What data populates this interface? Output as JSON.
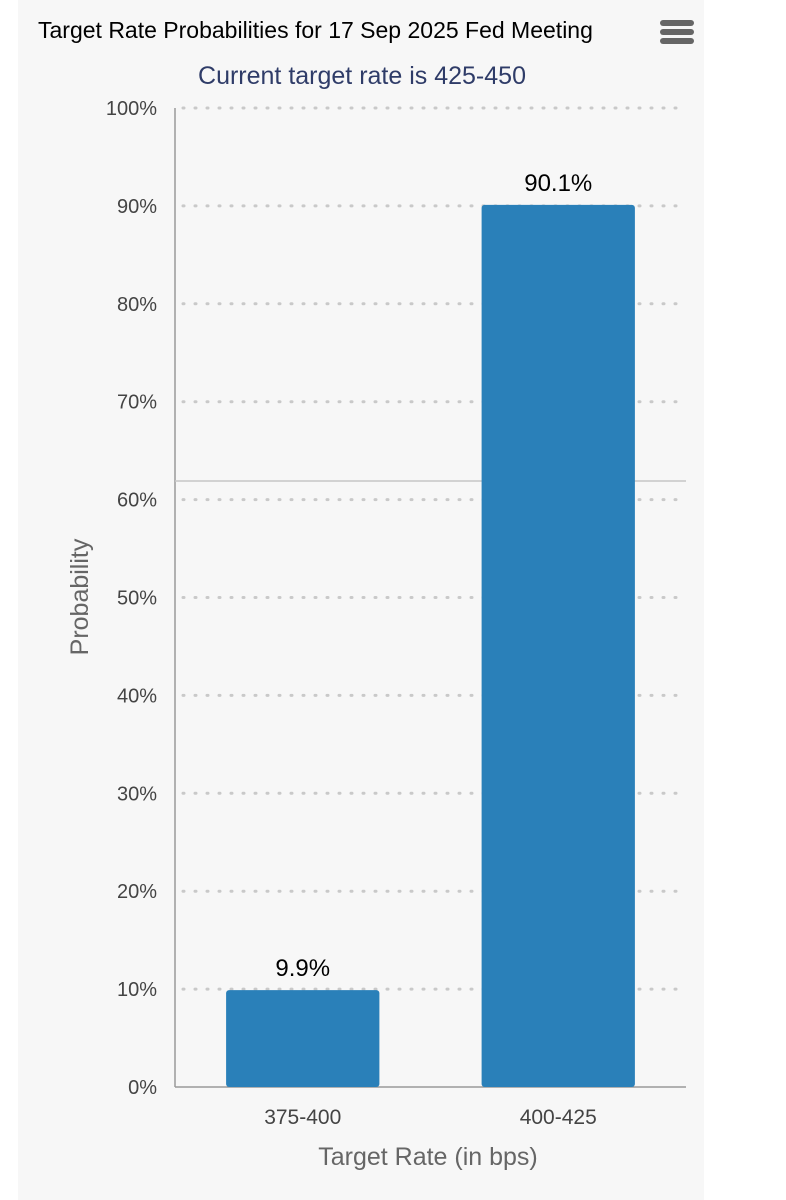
{
  "chart": {
    "title": "Target Rate Probabilities for 17 Sep 2025 Fed Meeting",
    "subtitle": "Current target rate is 425-450"
  },
  "chart_data": {
    "type": "bar",
    "title": "Target Rate Probabilities for 17 Sep 2025 Fed Meeting",
    "subtitle": "Current target rate is 425-450",
    "categories": [
      "375-400",
      "400-425"
    ],
    "values": [
      9.9,
      90.1
    ],
    "data_labels": [
      "9.9%",
      "90.1%"
    ],
    "xlabel": "Target Rate (in bps)",
    "ylabel": "Probability",
    "ylim": [
      0,
      100
    ],
    "yticks": [
      0,
      10,
      20,
      30,
      40,
      50,
      60,
      70,
      80,
      90,
      100
    ],
    "ytick_labels": [
      "0%",
      "10%",
      "20%",
      "30%",
      "40%",
      "50%",
      "60%",
      "70%",
      "80%",
      "90%",
      "100%"
    ],
    "grid": true,
    "legend": "none",
    "bar_color": "#2a80b9"
  },
  "colors": {
    "panel_background": "#f7f7f7",
    "bar": "#2a80b9",
    "subtitle": "#2f3c68",
    "menu_icon": "#666666"
  },
  "icons": {
    "menu": "hamburger-menu-icon"
  }
}
